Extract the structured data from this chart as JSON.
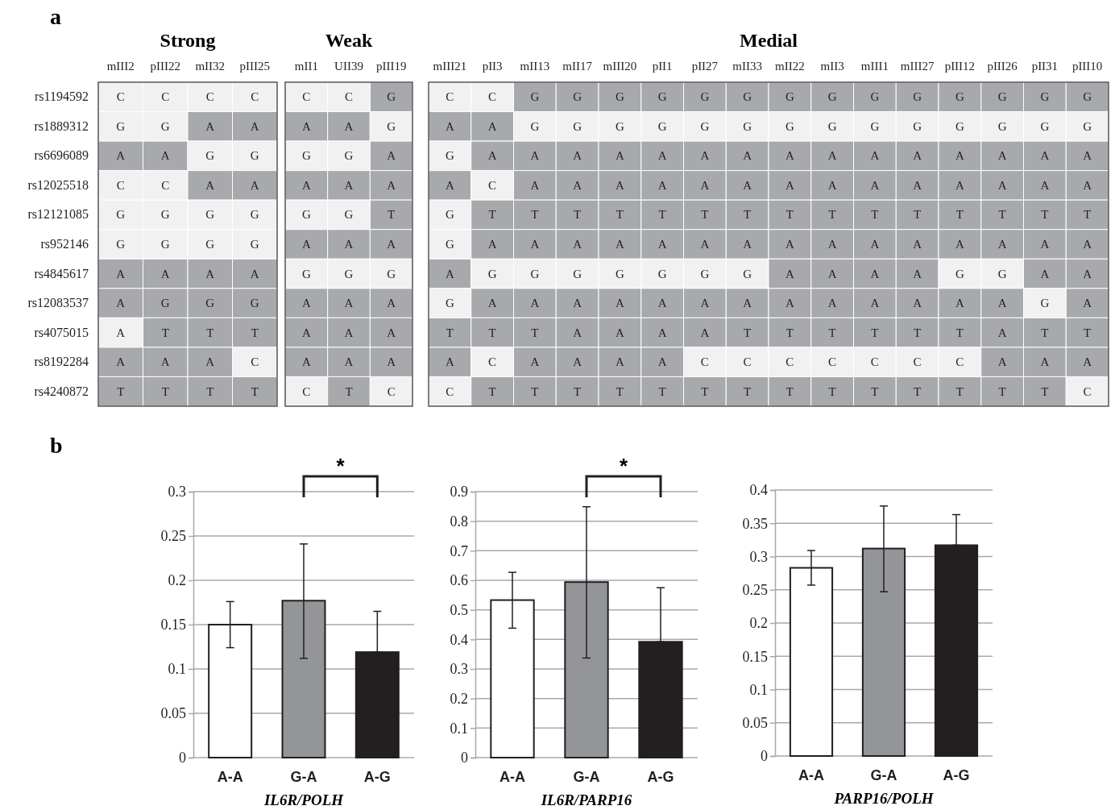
{
  "chart_data": [
    {
      "type": "other",
      "title": "Strong",
      "annotations": [
        "a"
      ],
      "categories": [
        "mIII2",
        "pIII22",
        "mII32",
        "pIII25"
      ],
      "y_categories": [
        "rs1194592",
        "rs1889312",
        "rs6696089",
        "rs12025518",
        "rs12121085",
        "rs952146",
        "rs4845617",
        "rs12083537",
        "rs4075015",
        "rs8192284",
        "rs4240872"
      ],
      "cell_labels": [
        [
          "C",
          "C",
          "C",
          "C"
        ],
        [
          "G",
          "G",
          "A",
          "A"
        ],
        [
          "A",
          "A",
          "G",
          "G"
        ],
        [
          "C",
          "C",
          "A",
          "A"
        ],
        [
          "G",
          "G",
          "G",
          "G"
        ],
        [
          "G",
          "G",
          "G",
          "G"
        ],
        [
          "A",
          "A",
          "A",
          "A"
        ],
        [
          "A",
          "G",
          "G",
          "G"
        ],
        [
          "A",
          "T",
          "T",
          "T"
        ],
        [
          "A",
          "A",
          "A",
          "C"
        ],
        [
          "T",
          "T",
          "T",
          "T"
        ]
      ],
      "colors": [
        [
          "#f1f1f2",
          "#f1f1f2",
          "#f1f1f2",
          "#f1f1f2"
        ],
        [
          "#f1f1f2",
          "#f1f1f2",
          "#a7a9ac",
          "#a7a9ac"
        ],
        [
          "#a7a9ac",
          "#a7a9ac",
          "#f1f1f2",
          "#f1f1f2"
        ],
        [
          "#f1f1f2",
          "#f1f1f2",
          "#a7a9ac",
          "#a7a9ac"
        ],
        [
          "#f1f1f2",
          "#f1f1f2",
          "#f1f1f2",
          "#f1f1f2"
        ],
        [
          "#f1f1f2",
          "#f1f1f2",
          "#f1f1f2",
          "#f1f1f2"
        ],
        [
          "#a7a9ac",
          "#a7a9ac",
          "#a7a9ac",
          "#a7a9ac"
        ],
        [
          "#a7a9ac",
          "#a7a9ac",
          "#a7a9ac",
          "#a7a9ac"
        ],
        [
          "#f1f1f2",
          "#a7a9ac",
          "#a7a9ac",
          "#a7a9ac"
        ],
        [
          "#a7a9ac",
          "#a7a9ac",
          "#a7a9ac",
          "#f1f1f2"
        ],
        [
          "#a7a9ac",
          "#a7a9ac",
          "#a7a9ac",
          "#a7a9ac"
        ]
      ]
    },
    {
      "type": "other",
      "title": "Weak",
      "categories": [
        "mII1",
        "UII39",
        "pIII19"
      ],
      "cell_labels": [
        [
          "C",
          "C",
          "G"
        ],
        [
          "A",
          "A",
          "G"
        ],
        [
          "G",
          "G",
          "A"
        ],
        [
          "A",
          "A",
          "A"
        ],
        [
          "G",
          "G",
          "T"
        ],
        [
          "A",
          "A",
          "A"
        ],
        [
          "G",
          "G",
          "G"
        ],
        [
          "A",
          "A",
          "A"
        ],
        [
          "A",
          "A",
          "A"
        ],
        [
          "A",
          "A",
          "A"
        ],
        [
          "C",
          "T",
          "C"
        ]
      ],
      "colors": [
        [
          "#f1f1f2",
          "#f1f1f2",
          "#a7a9ac"
        ],
        [
          "#a7a9ac",
          "#a7a9ac",
          "#f1f1f2"
        ],
        [
          "#f1f1f2",
          "#f1f1f2",
          "#a7a9ac"
        ],
        [
          "#a7a9ac",
          "#a7a9ac",
          "#a7a9ac"
        ],
        [
          "#f1f1f2",
          "#f1f1f2",
          "#a7a9ac"
        ],
        [
          "#a7a9ac",
          "#a7a9ac",
          "#a7a9ac"
        ],
        [
          "#f1f1f2",
          "#f1f1f2",
          "#f1f1f2"
        ],
        [
          "#a7a9ac",
          "#a7a9ac",
          "#a7a9ac"
        ],
        [
          "#a7a9ac",
          "#a7a9ac",
          "#a7a9ac"
        ],
        [
          "#a7a9ac",
          "#a7a9ac",
          "#a7a9ac"
        ],
        [
          "#f1f1f2",
          "#a7a9ac",
          "#f1f1f2"
        ]
      ]
    },
    {
      "type": "other",
      "title": "Medial",
      "categories": [
        "mIII21",
        "pII3",
        "mII13",
        "mII17",
        "mIII20",
        "pII1",
        "pII27",
        "mII33",
        "mII22",
        "mII3",
        "mIII1",
        "mIII27",
        "pIII12",
        "pIII26",
        "pII31",
        "pIII10"
      ],
      "cell_labels": [
        [
          "C",
          "C",
          "G",
          "G",
          "G",
          "G",
          "G",
          "G",
          "G",
          "G",
          "G",
          "G",
          "G",
          "G",
          "G",
          "G"
        ],
        [
          "A",
          "A",
          "G",
          "G",
          "G",
          "G",
          "G",
          "G",
          "G",
          "G",
          "G",
          "G",
          "G",
          "G",
          "G",
          "G"
        ],
        [
          "G",
          "A",
          "A",
          "A",
          "A",
          "A",
          "A",
          "A",
          "A",
          "A",
          "A",
          "A",
          "A",
          "A",
          "A",
          "A"
        ],
        [
          "A",
          "C",
          "A",
          "A",
          "A",
          "A",
          "A",
          "A",
          "A",
          "A",
          "A",
          "A",
          "A",
          "A",
          "A",
          "A"
        ],
        [
          "G",
          "T",
          "T",
          "T",
          "T",
          "T",
          "T",
          "T",
          "T",
          "T",
          "T",
          "T",
          "T",
          "T",
          "T",
          "T"
        ],
        [
          "G",
          "A",
          "A",
          "A",
          "A",
          "A",
          "A",
          "A",
          "A",
          "A",
          "A",
          "A",
          "A",
          "A",
          "A",
          "A"
        ],
        [
          "A",
          "G",
          "G",
          "G",
          "G",
          "G",
          "G",
          "G",
          "A",
          "A",
          "A",
          "A",
          "G",
          "G",
          "A",
          "A"
        ],
        [
          "G",
          "A",
          "A",
          "A",
          "A",
          "A",
          "A",
          "A",
          "A",
          "A",
          "A",
          "A",
          "A",
          "A",
          "G",
          "A"
        ],
        [
          "T",
          "T",
          "T",
          "A",
          "A",
          "A",
          "A",
          "T",
          "T",
          "T",
          "T",
          "T",
          "T",
          "A",
          "T",
          "T"
        ],
        [
          "A",
          "C",
          "A",
          "A",
          "A",
          "A",
          "C",
          "C",
          "C",
          "C",
          "C",
          "C",
          "C",
          "A",
          "A",
          "A"
        ],
        [
          "C",
          "T",
          "T",
          "T",
          "T",
          "T",
          "T",
          "T",
          "T",
          "T",
          "T",
          "T",
          "T",
          "T",
          "T",
          "C"
        ]
      ],
      "colors": [
        [
          "#f1f1f2",
          "#f1f1f2",
          "#a7a9ac",
          "#a7a9ac",
          "#a7a9ac",
          "#a7a9ac",
          "#a7a9ac",
          "#a7a9ac",
          "#a7a9ac",
          "#a7a9ac",
          "#a7a9ac",
          "#a7a9ac",
          "#a7a9ac",
          "#a7a9ac",
          "#a7a9ac",
          "#a7a9ac"
        ],
        [
          "#a7a9ac",
          "#a7a9ac",
          "#f1f1f2",
          "#f1f1f2",
          "#f1f1f2",
          "#f1f1f2",
          "#f1f1f2",
          "#f1f1f2",
          "#f1f1f2",
          "#f1f1f2",
          "#f1f1f2",
          "#f1f1f2",
          "#f1f1f2",
          "#f1f1f2",
          "#f1f1f2",
          "#f1f1f2"
        ],
        [
          "#f1f1f2",
          "#a7a9ac",
          "#a7a9ac",
          "#a7a9ac",
          "#a7a9ac",
          "#a7a9ac",
          "#a7a9ac",
          "#a7a9ac",
          "#a7a9ac",
          "#a7a9ac",
          "#a7a9ac",
          "#a7a9ac",
          "#a7a9ac",
          "#a7a9ac",
          "#a7a9ac",
          "#a7a9ac"
        ],
        [
          "#a7a9ac",
          "#f1f1f2",
          "#a7a9ac",
          "#a7a9ac",
          "#a7a9ac",
          "#a7a9ac",
          "#a7a9ac",
          "#a7a9ac",
          "#a7a9ac",
          "#a7a9ac",
          "#a7a9ac",
          "#a7a9ac",
          "#a7a9ac",
          "#a7a9ac",
          "#a7a9ac",
          "#a7a9ac"
        ],
        [
          "#f1f1f2",
          "#a7a9ac",
          "#a7a9ac",
          "#a7a9ac",
          "#a7a9ac",
          "#a7a9ac",
          "#a7a9ac",
          "#a7a9ac",
          "#a7a9ac",
          "#a7a9ac",
          "#a7a9ac",
          "#a7a9ac",
          "#a7a9ac",
          "#a7a9ac",
          "#a7a9ac",
          "#a7a9ac"
        ],
        [
          "#f1f1f2",
          "#a7a9ac",
          "#a7a9ac",
          "#a7a9ac",
          "#a7a9ac",
          "#a7a9ac",
          "#a7a9ac",
          "#a7a9ac",
          "#a7a9ac",
          "#a7a9ac",
          "#a7a9ac",
          "#a7a9ac",
          "#a7a9ac",
          "#a7a9ac",
          "#a7a9ac",
          "#a7a9ac"
        ],
        [
          "#a7a9ac",
          "#f1f1f2",
          "#f1f1f2",
          "#f1f1f2",
          "#f1f1f2",
          "#f1f1f2",
          "#f1f1f2",
          "#f1f1f2",
          "#a7a9ac",
          "#a7a9ac",
          "#a7a9ac",
          "#a7a9ac",
          "#f1f1f2",
          "#f1f1f2",
          "#a7a9ac",
          "#a7a9ac"
        ],
        [
          "#f1f1f2",
          "#a7a9ac",
          "#a7a9ac",
          "#a7a9ac",
          "#a7a9ac",
          "#a7a9ac",
          "#a7a9ac",
          "#a7a9ac",
          "#a7a9ac",
          "#a7a9ac",
          "#a7a9ac",
          "#a7a9ac",
          "#a7a9ac",
          "#a7a9ac",
          "#f1f1f2",
          "#a7a9ac"
        ],
        [
          "#a7a9ac",
          "#a7a9ac",
          "#a7a9ac",
          "#a7a9ac",
          "#a7a9ac",
          "#a7a9ac",
          "#a7a9ac",
          "#a7a9ac",
          "#a7a9ac",
          "#a7a9ac",
          "#a7a9ac",
          "#a7a9ac",
          "#a7a9ac",
          "#a7a9ac",
          "#a7a9ac",
          "#a7a9ac"
        ],
        [
          "#a7a9ac",
          "#f1f1f2",
          "#a7a9ac",
          "#a7a9ac",
          "#a7a9ac",
          "#a7a9ac",
          "#f1f1f2",
          "#f1f1f2",
          "#f1f1f2",
          "#f1f1f2",
          "#f1f1f2",
          "#f1f1f2",
          "#f1f1f2",
          "#a7a9ac",
          "#a7a9ac",
          "#a7a9ac"
        ],
        [
          "#f1f1f2",
          "#a7a9ac",
          "#a7a9ac",
          "#a7a9ac",
          "#a7a9ac",
          "#a7a9ac",
          "#a7a9ac",
          "#a7a9ac",
          "#a7a9ac",
          "#a7a9ac",
          "#a7a9ac",
          "#a7a9ac",
          "#a7a9ac",
          "#a7a9ac",
          "#a7a9ac",
          "#f1f1f2"
        ]
      ]
    },
    {
      "type": "bar",
      "xlabel": "IL6R/POLH",
      "annotations": [
        "b",
        "*"
      ],
      "categories": [
        "A-A",
        "G-A",
        "A-G"
      ],
      "values": [
        0.15,
        0.177,
        0.119
      ],
      "colors": [
        "#ffffff",
        "#939598",
        "#231f20"
      ],
      "errors": [
        [
          0.124,
          0.176
        ],
        [
          0.112,
          0.241
        ],
        [
          0.119,
          0.165
        ]
      ],
      "ylim": [
        0,
        0.3
      ],
      "yticks": [
        0,
        0.05,
        0.1,
        0.15,
        0.2,
        0.25,
        0.3
      ],
      "grid": "y"
    },
    {
      "type": "bar",
      "xlabel": "IL6R/PARP16",
      "annotations": [
        "*"
      ],
      "categories": [
        "A-A",
        "G-A",
        "A-G"
      ],
      "values": [
        0.533,
        0.594,
        0.392
      ],
      "colors": [
        "#ffffff",
        "#939598",
        "#231f20"
      ],
      "errors": [
        [
          0.438,
          0.627
        ],
        [
          0.337,
          0.849
        ],
        [
          0.392,
          0.575
        ]
      ],
      "ylim": [
        0,
        0.9
      ],
      "yticks": [
        0,
        0.1,
        0.2,
        0.3,
        0.4,
        0.5,
        0.6,
        0.7,
        0.8,
        0.9
      ],
      "grid": "y"
    },
    {
      "type": "bar",
      "xlabel": "PARP16/POLH",
      "categories": [
        "A-A",
        "G-A",
        "A-G"
      ],
      "values": [
        0.283,
        0.312,
        0.317
      ],
      "colors": [
        "#ffffff",
        "#939598",
        "#231f20"
      ],
      "errors": [
        [
          0.257,
          0.309
        ],
        [
          0.247,
          0.376
        ],
        [
          0.317,
          0.363
        ]
      ],
      "ylim": [
        0,
        0.4
      ],
      "yticks": [
        0,
        0.05,
        0.1,
        0.15,
        0.2,
        0.25,
        0.3,
        0.35,
        0.4
      ],
      "grid": "y"
    }
  ]
}
